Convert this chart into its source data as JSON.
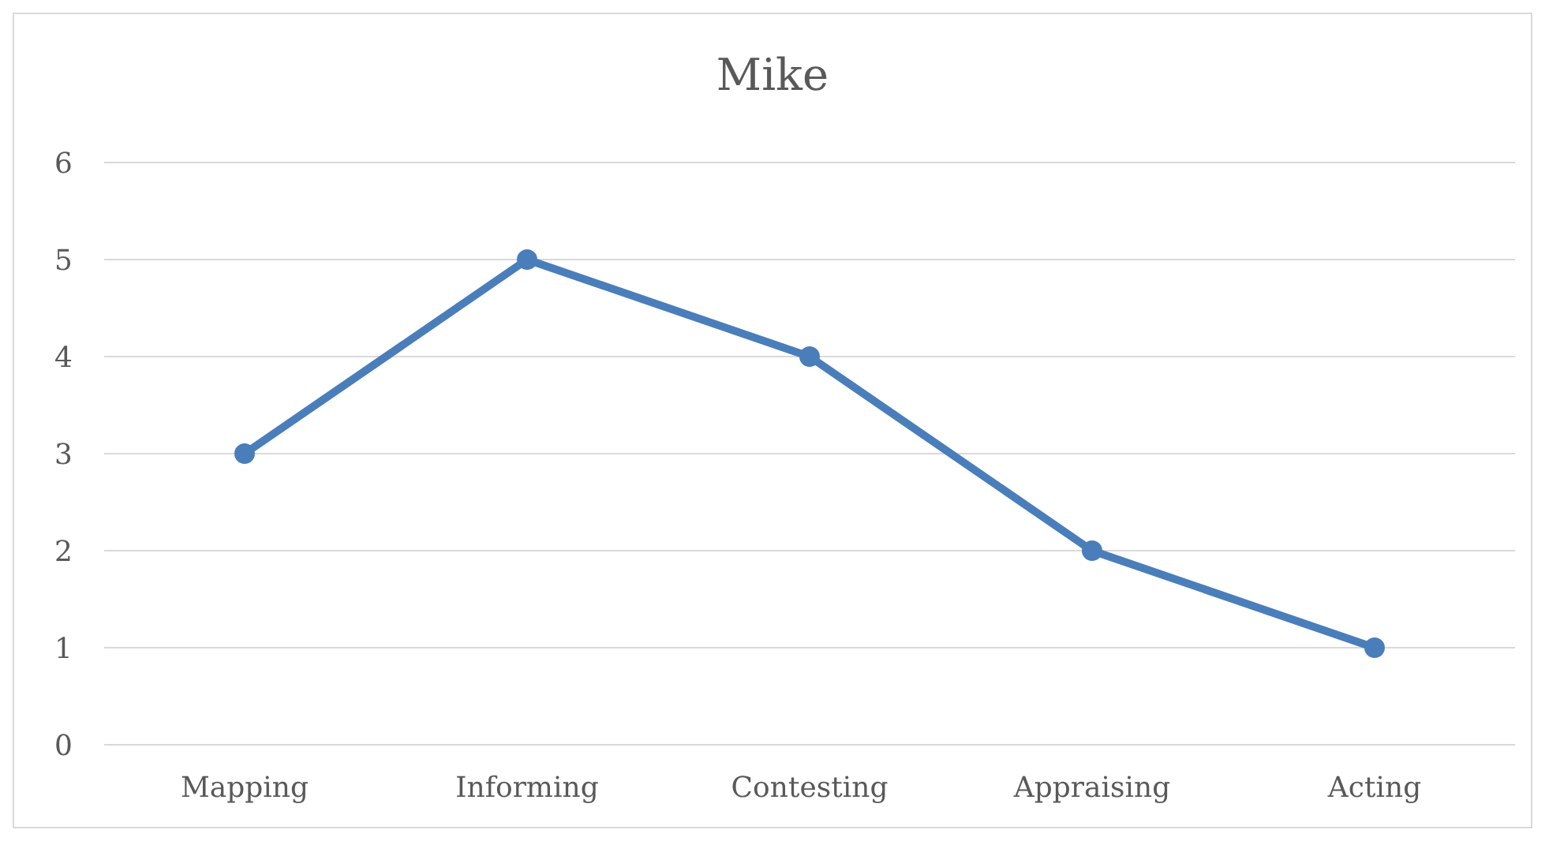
{
  "chart_data": {
    "type": "line",
    "title": "Mike",
    "categories": [
      "Mapping",
      "Informing",
      "Contesting",
      "Appraising",
      "Acting"
    ],
    "series": [
      {
        "color": "#4a7ebb",
        "values": [
          3,
          5,
          4,
          2,
          1
        ]
      }
    ],
    "ylim": [
      0,
      6
    ],
    "yticks": [
      0,
      1,
      2,
      3,
      4,
      5,
      6
    ],
    "grid": "y",
    "legend": false,
    "marker": "circle",
    "line_style": "solid"
  }
}
